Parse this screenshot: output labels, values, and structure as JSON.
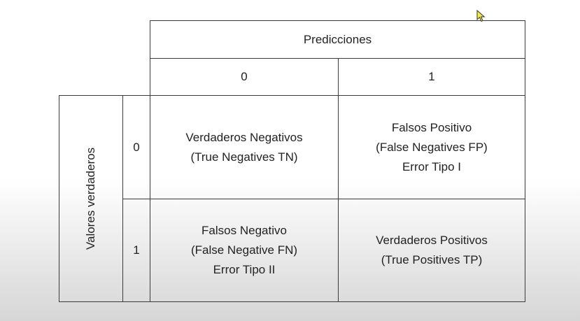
{
  "header": {
    "predictions_label": "Predicciones",
    "columns": [
      "0",
      "1"
    ]
  },
  "side": {
    "actual_label": "Valores verdaderos",
    "rows": [
      "0",
      "1"
    ]
  },
  "cells": {
    "tn": [
      "Verdaderos Negativos",
      "(True Negatives TN)"
    ],
    "fp": [
      "Falsos Positivo",
      "(False Negatives FP)",
      "Error Tipo I"
    ],
    "fn": [
      "Falsos Negativo",
      "(False Negative FN)",
      "Error Tipo II"
    ],
    "tp": [
      "Verdaderos Positivos",
      "(True Positives TP)"
    ]
  },
  "colors": {
    "border": "#3a3a3a",
    "text": "#222222",
    "cursor_fill": "#f5e84a"
  },
  "icons": {
    "cursor": "mouse-pointer-icon"
  }
}
